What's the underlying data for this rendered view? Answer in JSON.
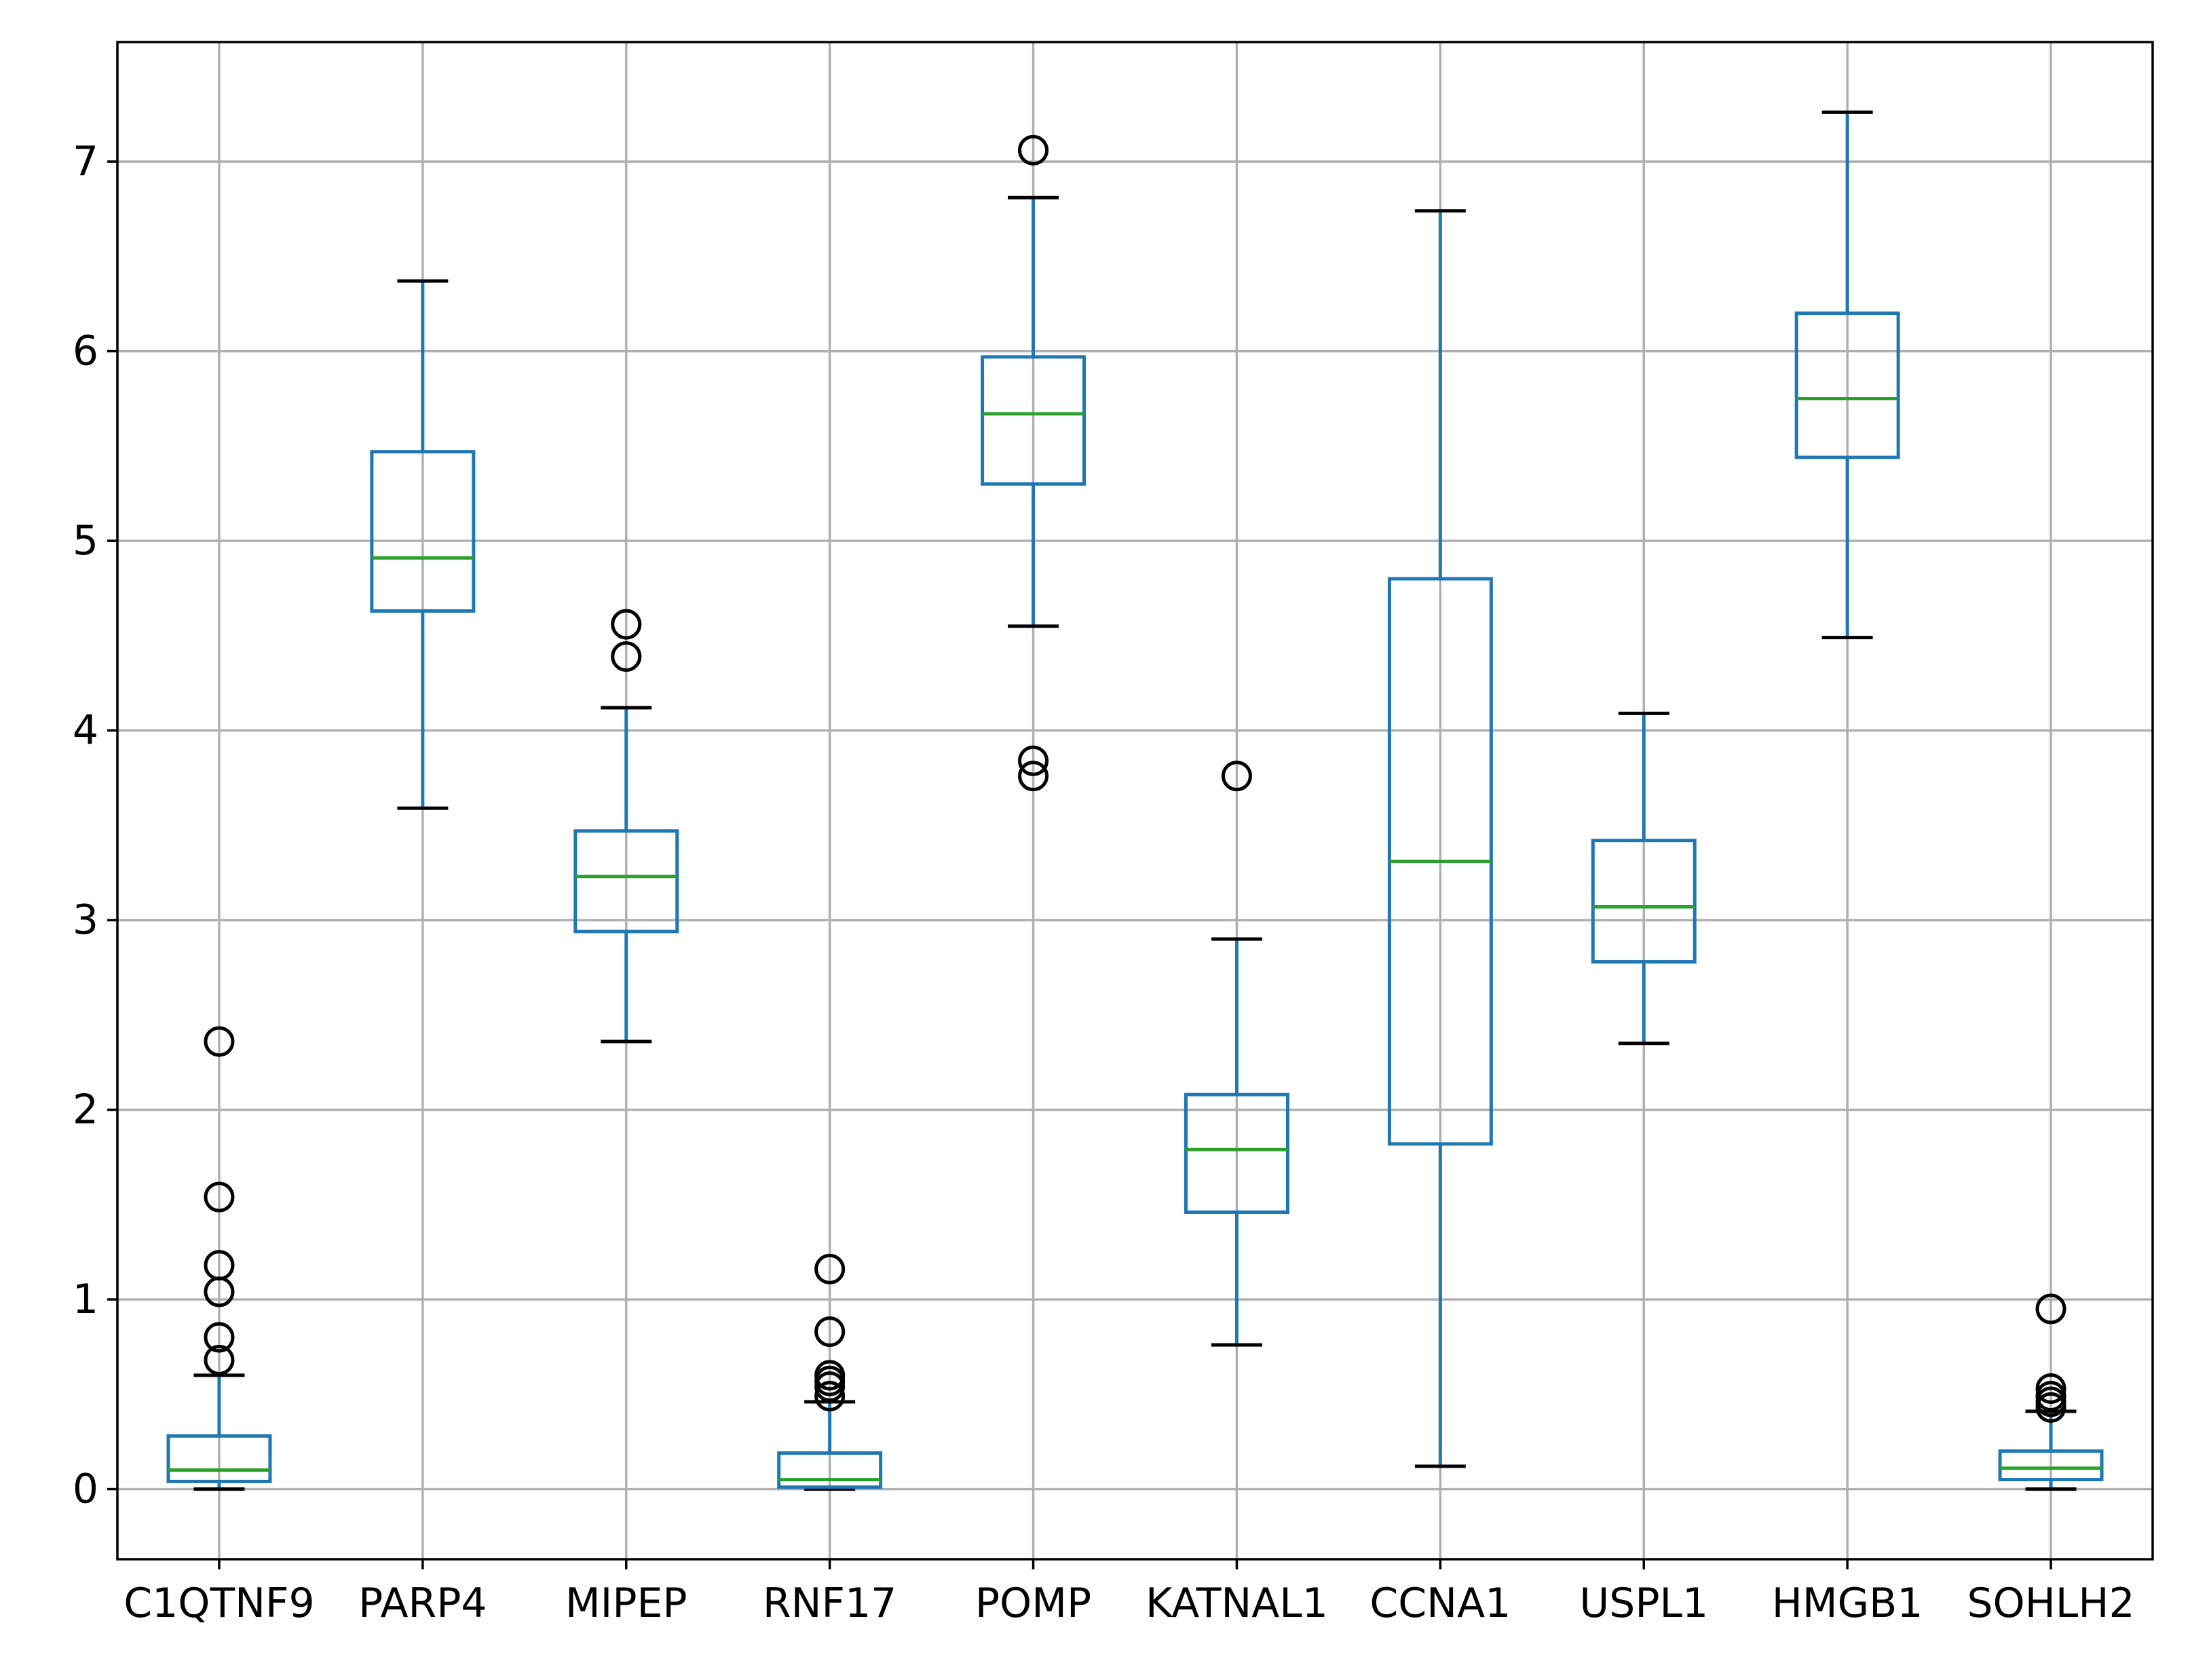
{
  "chart_data": {
    "type": "box",
    "title": "",
    "xlabel": "",
    "ylabel": "",
    "ylim": [
      -0.37,
      7.63
    ],
    "yticks": [
      0,
      1,
      2,
      3,
      4,
      5,
      6,
      7
    ],
    "grid": true,
    "legend": "none",
    "colors": {
      "box": "#1f77b4",
      "median": "#2ca02c",
      "whisker": "#1f77b4",
      "cap": "#000000",
      "flier": "#000000",
      "grid": "#b0b0b0",
      "axes": "#000000"
    },
    "categories": [
      "C1QTNF9",
      "PARP4",
      "MIPEP",
      "RNF17",
      "POMP",
      "KATNAL1",
      "CCNA1",
      "USPL1",
      "HMGB1",
      "SOHLH2"
    ],
    "boxes": [
      {
        "label": "C1QTNF9",
        "whislo": 0.0,
        "q1": 0.04,
        "med": 0.1,
        "q3": 0.28,
        "whishi": 0.6,
        "fliers": [
          2.36,
          1.54,
          1.18,
          1.04,
          0.8,
          0.68
        ]
      },
      {
        "label": "PARP4",
        "whislo": 3.59,
        "q1": 4.63,
        "med": 4.91,
        "q3": 5.47,
        "whishi": 6.37,
        "fliers": []
      },
      {
        "label": "MIPEP",
        "whislo": 2.36,
        "q1": 2.94,
        "med": 3.23,
        "q3": 3.47,
        "whishi": 4.12,
        "fliers": [
          4.56,
          4.39
        ]
      },
      {
        "label": "RNF17",
        "whislo": 0.0,
        "q1": 0.01,
        "med": 0.05,
        "q3": 0.19,
        "whishi": 0.46,
        "fliers": [
          1.16,
          0.83,
          0.6,
          0.57,
          0.54,
          0.49
        ]
      },
      {
        "label": "POMP",
        "whislo": 4.55,
        "q1": 5.3,
        "med": 5.67,
        "q3": 5.97,
        "whishi": 6.81,
        "fliers": [
          7.06,
          3.84,
          3.76
        ]
      },
      {
        "label": "KATNAL1",
        "whislo": 0.76,
        "q1": 1.46,
        "med": 1.79,
        "q3": 2.08,
        "whishi": 2.9,
        "fliers": [
          3.76
        ]
      },
      {
        "label": "CCNA1",
        "whislo": 0.12,
        "q1": 1.82,
        "med": 3.31,
        "q3": 4.8,
        "whishi": 6.74,
        "fliers": []
      },
      {
        "label": "USPL1",
        "whislo": 2.35,
        "q1": 2.78,
        "med": 3.07,
        "q3": 3.42,
        "whishi": 4.09,
        "fliers": []
      },
      {
        "label": "HMGB1",
        "whislo": 4.49,
        "q1": 5.44,
        "med": 5.75,
        "q3": 6.2,
        "whishi": 7.26,
        "fliers": []
      },
      {
        "label": "SOHLH2",
        "whislo": 0.0,
        "q1": 0.05,
        "med": 0.11,
        "q3": 0.2,
        "whishi": 0.41,
        "fliers": [
          0.95,
          0.53,
          0.49,
          0.46,
          0.43
        ]
      }
    ]
  }
}
